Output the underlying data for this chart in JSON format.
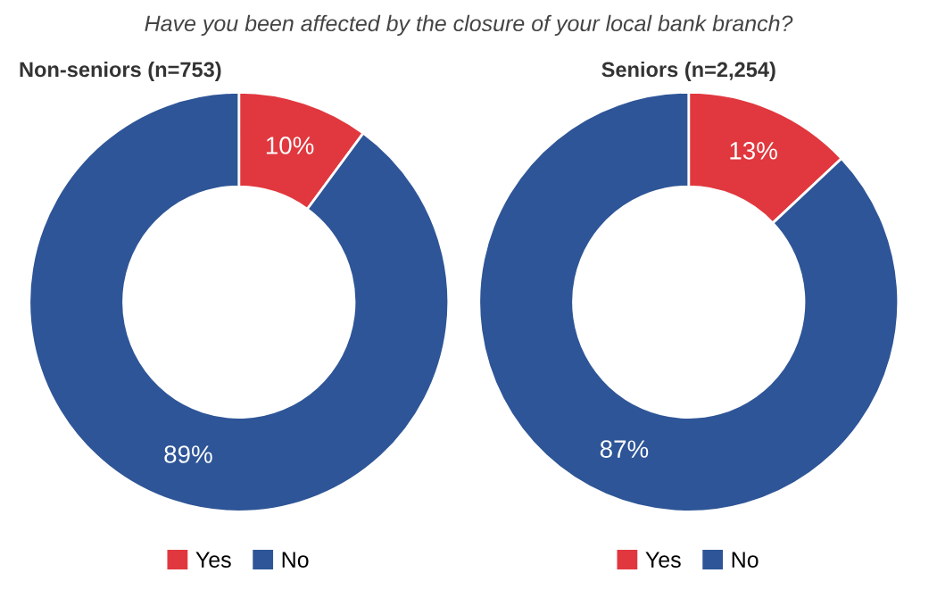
{
  "chart_data": [
    {
      "type": "donut",
      "title": "Non-seniors (n=753)",
      "annotations": [
        "Have you been affected by the closure of your local bank branch?"
      ],
      "categories": [
        "Yes",
        "No"
      ],
      "values": [
        10,
        89
      ],
      "value_labels": [
        "10%",
        "89%"
      ],
      "colors": [
        "#e0383e",
        "#2e5597"
      ],
      "legend": "bottom"
    },
    {
      "type": "donut",
      "title": "Seniors (n=2,254)",
      "categories": [
        "Yes",
        "No"
      ],
      "values": [
        13,
        87
      ],
      "value_labels": [
        "13%",
        "87%"
      ],
      "colors": [
        "#e0383e",
        "#2e5597"
      ],
      "legend": "bottom"
    }
  ]
}
